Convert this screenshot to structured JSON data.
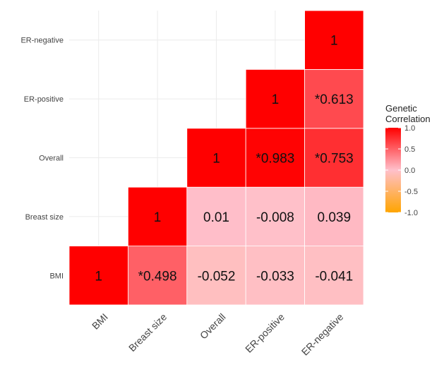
{
  "chart_data": {
    "type": "heatmap",
    "title": "",
    "xlabel": "",
    "ylabel": "",
    "categories": [
      "BMI",
      "Breast size",
      "Overall",
      "ER-positive",
      "ER-negative"
    ],
    "cells": [
      {
        "row": "BMI",
        "col": "BMI",
        "value": 1,
        "label": "1",
        "significant": false
      },
      {
        "row": "BMI",
        "col": "Breast size",
        "value": 0.498,
        "label": "0.498",
        "significant": true
      },
      {
        "row": "BMI",
        "col": "Overall",
        "value": -0.052,
        "label": "-0.052",
        "significant": false
      },
      {
        "row": "BMI",
        "col": "ER-positive",
        "value": -0.033,
        "label": "-0.033",
        "significant": false
      },
      {
        "row": "BMI",
        "col": "ER-negative",
        "value": -0.041,
        "label": "-0.041",
        "significant": false
      },
      {
        "row": "Breast size",
        "col": "Breast size",
        "value": 1,
        "label": "1",
        "significant": false
      },
      {
        "row": "Breast size",
        "col": "Overall",
        "value": 0.01,
        "label": "0.01",
        "significant": false
      },
      {
        "row": "Breast size",
        "col": "ER-positive",
        "value": -0.008,
        "label": "-0.008",
        "significant": false
      },
      {
        "row": "Breast size",
        "col": "ER-negative",
        "value": 0.039,
        "label": "0.039",
        "significant": false
      },
      {
        "row": "Overall",
        "col": "Overall",
        "value": 1,
        "label": "1",
        "significant": false
      },
      {
        "row": "Overall",
        "col": "ER-positive",
        "value": 0.983,
        "label": "0.983",
        "significant": true
      },
      {
        "row": "Overall",
        "col": "ER-negative",
        "value": 0.753,
        "label": "0.753",
        "significant": true
      },
      {
        "row": "ER-positive",
        "col": "ER-positive",
        "value": 1,
        "label": "1",
        "significant": false
      },
      {
        "row": "ER-positive",
        "col": "ER-negative",
        "value": 0.613,
        "label": "0.613",
        "significant": true
      },
      {
        "row": "ER-negative",
        "col": "ER-negative",
        "value": 1,
        "label": "1",
        "significant": false
      }
    ],
    "significance_marker": "*",
    "legend": {
      "title": "Genetic\nCorrelation",
      "title_lines": [
        "Genetic",
        "Correlation"
      ],
      "ticks": [
        1.0,
        0.5,
        0.0,
        -0.5,
        -1.0
      ],
      "tick_labels": [
        "1.0",
        "0.5",
        "0.0",
        "-0.5",
        "-1.0"
      ],
      "range": [
        -1,
        1
      ],
      "placement": "right",
      "colors": {
        "low": "#FFA500",
        "mid": "#FFC0CB",
        "high": "#FF0000"
      }
    },
    "grid": true
  }
}
